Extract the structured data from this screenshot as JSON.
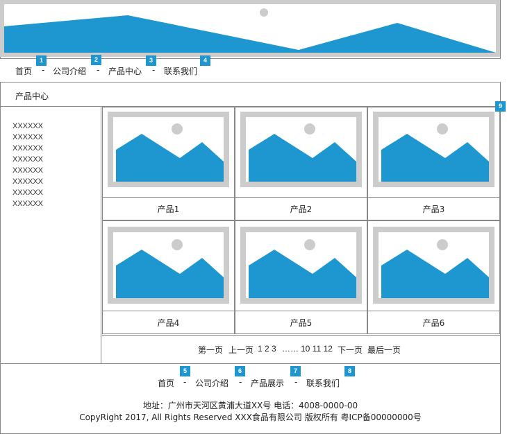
{
  "nav": {
    "items": [
      {
        "label": "首页",
        "badge": "1"
      },
      {
        "label": "公司介绍",
        "badge": "2"
      },
      {
        "label": "产品中心",
        "badge": "3"
      },
      {
        "label": "联系我们",
        "badge": "4"
      }
    ],
    "separator": "-"
  },
  "breadcrumb": "产品中心",
  "grid_badge": "9",
  "sidebar": {
    "items": [
      "XXXXXX",
      "XXXXXX",
      "XXXXXX",
      "XXXXXX",
      "XXXXXX",
      "XXXXXX",
      "XXXXXX",
      "XXXXXX"
    ]
  },
  "products": [
    {
      "name": "产品1"
    },
    {
      "name": "产品2"
    },
    {
      "name": "产品3"
    },
    {
      "name": "产品4"
    },
    {
      "name": "产品5"
    },
    {
      "name": "产品6"
    }
  ],
  "pagination": {
    "first": "第一页",
    "prev": "上一页",
    "pages_before": "1 2 3",
    "ellipsis": "……",
    "pages_after": "10 11 12",
    "next": "下一页",
    "last": "最后一页"
  },
  "footer": {
    "links": [
      {
        "label": "首页",
        "badge": "5"
      },
      {
        "label": "公司介绍",
        "badge": "6"
      },
      {
        "label": "产品展示",
        "badge": "7"
      },
      {
        "label": "联系我们",
        "badge": "8"
      }
    ],
    "separator": "-",
    "address": "地址：广州市天河区黄浦大道XX号   电话：4008-0000-00",
    "copyright": "CopyRight 2017, All Rights Reserved    XXX食品有限公司 版权所有 粤ICP备00000000号"
  },
  "colors": {
    "accent": "#1e97d0",
    "placeholder_frame": "#cccccc",
    "border": "#888888"
  }
}
